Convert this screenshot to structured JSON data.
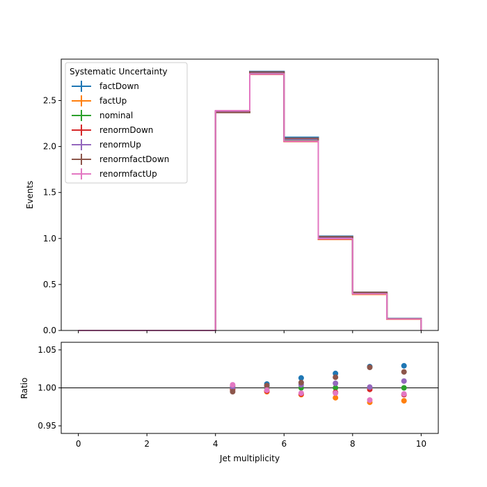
{
  "chart_data": [
    {
      "type": "line",
      "step": true,
      "ylabel": "Events",
      "xlim": [
        -0.5,
        10.5
      ],
      "ylim": [
        0,
        2.95
      ],
      "x_edges": [
        0,
        1,
        2,
        3,
        4,
        5,
        6,
        7,
        8,
        9,
        10
      ],
      "xticks": [
        "0",
        "2",
        "4",
        "6",
        "8",
        "10"
      ],
      "yticks": [
        "0.0",
        "0.5",
        "1.0",
        "1.5",
        "2.0",
        "2.5"
      ],
      "grid": false,
      "legend": {
        "title": "Systematic Uncertainty",
        "placement": "top-left"
      },
      "series": [
        {
          "name": "factDown",
          "color": "#1f77b4",
          "values": [
            0,
            0,
            0,
            0,
            2.375,
            2.815,
            2.1,
            1.025,
            0.415,
            0.13
          ]
        },
        {
          "name": "factUp",
          "color": "#ff7f0e",
          "values": [
            0,
            0,
            0,
            0,
            2.385,
            2.79,
            2.055,
            0.99,
            0.392,
            0.122
          ]
        },
        {
          "name": "nominal",
          "color": "#2ca02c",
          "values": [
            0,
            0,
            0,
            0,
            2.38,
            2.8,
            2.075,
            1.005,
            0.403,
            0.126
          ]
        },
        {
          "name": "renormDown",
          "color": "#d62728",
          "values": [
            0,
            0,
            0,
            0,
            2.375,
            2.785,
            2.055,
            0.995,
            0.402,
            0.125
          ]
        },
        {
          "name": "renormUp",
          "color": "#9467bd",
          "values": [
            0,
            0,
            0,
            0,
            2.385,
            2.805,
            2.08,
            1.01,
            0.403,
            0.125
          ]
        },
        {
          "name": "renormfactDown",
          "color": "#8c564b",
          "values": [
            0,
            0,
            0,
            0,
            2.37,
            2.81,
            2.09,
            1.02,
            0.414,
            0.128
          ]
        },
        {
          "name": "renormfactUp",
          "color": "#e377c2",
          "values": [
            0,
            0,
            0,
            0,
            2.39,
            2.79,
            2.06,
            0.998,
            0.397,
            0.125
          ]
        }
      ]
    },
    {
      "type": "scatter",
      "xlabel": "Jet multiplicity",
      "ylabel": "Ratio",
      "xlim": [
        -0.5,
        10.5
      ],
      "ylim": [
        0.94,
        1.06
      ],
      "x": [
        4.5,
        5.5,
        6.5,
        7.5,
        8.5,
        9.5
      ],
      "xticks": [
        "0",
        "2",
        "4",
        "6",
        "8",
        "10"
      ],
      "yticks": [
        "0.95",
        "1.00",
        "1.05"
      ],
      "reference_line": 1.0,
      "grid": false,
      "series": [
        {
          "name": "factDown",
          "color": "#1f77b4",
          "values": [
            0.998,
            1.005,
            1.013,
            1.019,
            1.028,
            1.029
          ]
        },
        {
          "name": "factUp",
          "color": "#ff7f0e",
          "values": [
            1.002,
            0.995,
            0.991,
            0.987,
            0.981,
            0.983
          ]
        },
        {
          "name": "nominal",
          "color": "#2ca02c",
          "values": [
            1.0,
            1.0,
            1.0,
            1.0,
            1.0,
            1.0
          ]
        },
        {
          "name": "renormDown",
          "color": "#d62728",
          "values": [
            0.998,
            0.996,
            0.992,
            0.994,
            0.998,
            0.991
          ]
        },
        {
          "name": "renormUp",
          "color": "#9467bd",
          "values": [
            1.001,
            1.002,
            1.004,
            1.006,
            1.001,
            1.009
          ]
        },
        {
          "name": "renormfactDown",
          "color": "#8c564b",
          "values": [
            0.995,
            1.003,
            1.007,
            1.014,
            1.027,
            1.021
          ]
        },
        {
          "name": "renormfactUp",
          "color": "#e377c2",
          "values": [
            1.004,
            0.997,
            0.993,
            0.993,
            0.984,
            0.992
          ]
        }
      ]
    }
  ]
}
